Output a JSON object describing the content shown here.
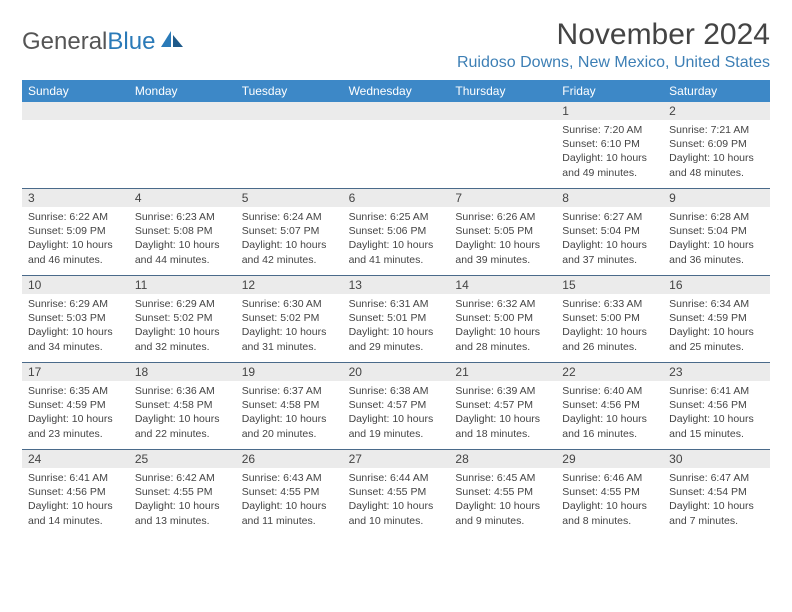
{
  "logo": {
    "text_gray": "General",
    "text_blue": "Blue"
  },
  "title": "November 2024",
  "location": "Ruidoso Downs, New Mexico, United States",
  "colors": {
    "header_bg": "#3d88c7",
    "header_text": "#ffffff",
    "daynum_bg": "#ebebeb",
    "location_color": "#3d7fb5",
    "week_divider": "#4a6a8a"
  },
  "dow": [
    "Sunday",
    "Monday",
    "Tuesday",
    "Wednesday",
    "Thursday",
    "Friday",
    "Saturday"
  ],
  "weeks": [
    [
      {
        "blank": true
      },
      {
        "blank": true
      },
      {
        "blank": true
      },
      {
        "blank": true
      },
      {
        "blank": true
      },
      {
        "day": "1",
        "sunrise": "Sunrise: 7:20 AM",
        "sunset": "Sunset: 6:10 PM",
        "daylight": "Daylight: 10 hours and 49 minutes."
      },
      {
        "day": "2",
        "sunrise": "Sunrise: 7:21 AM",
        "sunset": "Sunset: 6:09 PM",
        "daylight": "Daylight: 10 hours and 48 minutes."
      }
    ],
    [
      {
        "day": "3",
        "sunrise": "Sunrise: 6:22 AM",
        "sunset": "Sunset: 5:09 PM",
        "daylight": "Daylight: 10 hours and 46 minutes."
      },
      {
        "day": "4",
        "sunrise": "Sunrise: 6:23 AM",
        "sunset": "Sunset: 5:08 PM",
        "daylight": "Daylight: 10 hours and 44 minutes."
      },
      {
        "day": "5",
        "sunrise": "Sunrise: 6:24 AM",
        "sunset": "Sunset: 5:07 PM",
        "daylight": "Daylight: 10 hours and 42 minutes."
      },
      {
        "day": "6",
        "sunrise": "Sunrise: 6:25 AM",
        "sunset": "Sunset: 5:06 PM",
        "daylight": "Daylight: 10 hours and 41 minutes."
      },
      {
        "day": "7",
        "sunrise": "Sunrise: 6:26 AM",
        "sunset": "Sunset: 5:05 PM",
        "daylight": "Daylight: 10 hours and 39 minutes."
      },
      {
        "day": "8",
        "sunrise": "Sunrise: 6:27 AM",
        "sunset": "Sunset: 5:04 PM",
        "daylight": "Daylight: 10 hours and 37 minutes."
      },
      {
        "day": "9",
        "sunrise": "Sunrise: 6:28 AM",
        "sunset": "Sunset: 5:04 PM",
        "daylight": "Daylight: 10 hours and 36 minutes."
      }
    ],
    [
      {
        "day": "10",
        "sunrise": "Sunrise: 6:29 AM",
        "sunset": "Sunset: 5:03 PM",
        "daylight": "Daylight: 10 hours and 34 minutes."
      },
      {
        "day": "11",
        "sunrise": "Sunrise: 6:29 AM",
        "sunset": "Sunset: 5:02 PM",
        "daylight": "Daylight: 10 hours and 32 minutes."
      },
      {
        "day": "12",
        "sunrise": "Sunrise: 6:30 AM",
        "sunset": "Sunset: 5:02 PM",
        "daylight": "Daylight: 10 hours and 31 minutes."
      },
      {
        "day": "13",
        "sunrise": "Sunrise: 6:31 AM",
        "sunset": "Sunset: 5:01 PM",
        "daylight": "Daylight: 10 hours and 29 minutes."
      },
      {
        "day": "14",
        "sunrise": "Sunrise: 6:32 AM",
        "sunset": "Sunset: 5:00 PM",
        "daylight": "Daylight: 10 hours and 28 minutes."
      },
      {
        "day": "15",
        "sunrise": "Sunrise: 6:33 AM",
        "sunset": "Sunset: 5:00 PM",
        "daylight": "Daylight: 10 hours and 26 minutes."
      },
      {
        "day": "16",
        "sunrise": "Sunrise: 6:34 AM",
        "sunset": "Sunset: 4:59 PM",
        "daylight": "Daylight: 10 hours and 25 minutes."
      }
    ],
    [
      {
        "day": "17",
        "sunrise": "Sunrise: 6:35 AM",
        "sunset": "Sunset: 4:59 PM",
        "daylight": "Daylight: 10 hours and 23 minutes."
      },
      {
        "day": "18",
        "sunrise": "Sunrise: 6:36 AM",
        "sunset": "Sunset: 4:58 PM",
        "daylight": "Daylight: 10 hours and 22 minutes."
      },
      {
        "day": "19",
        "sunrise": "Sunrise: 6:37 AM",
        "sunset": "Sunset: 4:58 PM",
        "daylight": "Daylight: 10 hours and 20 minutes."
      },
      {
        "day": "20",
        "sunrise": "Sunrise: 6:38 AM",
        "sunset": "Sunset: 4:57 PM",
        "daylight": "Daylight: 10 hours and 19 minutes."
      },
      {
        "day": "21",
        "sunrise": "Sunrise: 6:39 AM",
        "sunset": "Sunset: 4:57 PM",
        "daylight": "Daylight: 10 hours and 18 minutes."
      },
      {
        "day": "22",
        "sunrise": "Sunrise: 6:40 AM",
        "sunset": "Sunset: 4:56 PM",
        "daylight": "Daylight: 10 hours and 16 minutes."
      },
      {
        "day": "23",
        "sunrise": "Sunrise: 6:41 AM",
        "sunset": "Sunset: 4:56 PM",
        "daylight": "Daylight: 10 hours and 15 minutes."
      }
    ],
    [
      {
        "day": "24",
        "sunrise": "Sunrise: 6:41 AM",
        "sunset": "Sunset: 4:56 PM",
        "daylight": "Daylight: 10 hours and 14 minutes."
      },
      {
        "day": "25",
        "sunrise": "Sunrise: 6:42 AM",
        "sunset": "Sunset: 4:55 PM",
        "daylight": "Daylight: 10 hours and 13 minutes."
      },
      {
        "day": "26",
        "sunrise": "Sunrise: 6:43 AM",
        "sunset": "Sunset: 4:55 PM",
        "daylight": "Daylight: 10 hours and 11 minutes."
      },
      {
        "day": "27",
        "sunrise": "Sunrise: 6:44 AM",
        "sunset": "Sunset: 4:55 PM",
        "daylight": "Daylight: 10 hours and 10 minutes."
      },
      {
        "day": "28",
        "sunrise": "Sunrise: 6:45 AM",
        "sunset": "Sunset: 4:55 PM",
        "daylight": "Daylight: 10 hours and 9 minutes."
      },
      {
        "day": "29",
        "sunrise": "Sunrise: 6:46 AM",
        "sunset": "Sunset: 4:55 PM",
        "daylight": "Daylight: 10 hours and 8 minutes."
      },
      {
        "day": "30",
        "sunrise": "Sunrise: 6:47 AM",
        "sunset": "Sunset: 4:54 PM",
        "daylight": "Daylight: 10 hours and 7 minutes."
      }
    ]
  ]
}
